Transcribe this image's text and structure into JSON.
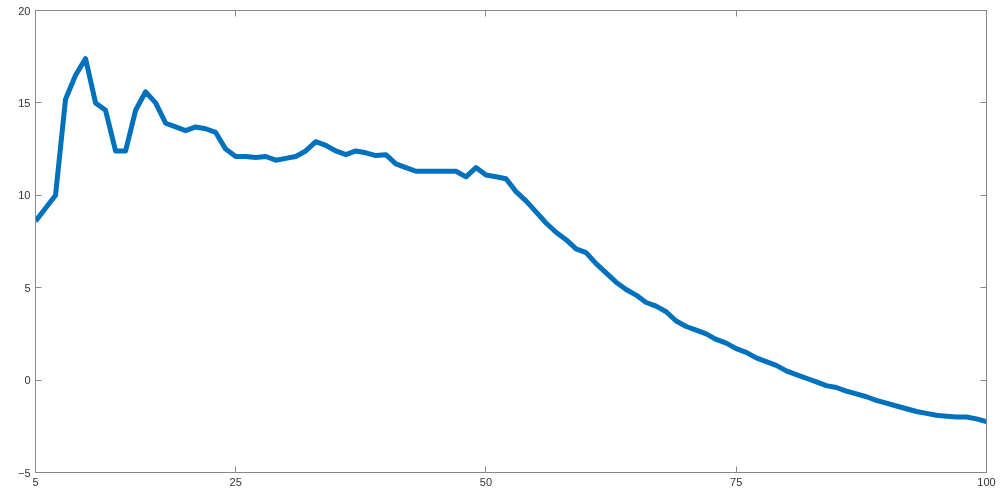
{
  "chart_data": {
    "type": "line",
    "x": [
      5,
      6,
      7,
      8,
      9,
      10,
      11,
      12,
      13,
      14,
      15,
      16,
      17,
      18,
      19,
      20,
      21,
      22,
      23,
      24,
      25,
      26,
      27,
      28,
      29,
      30,
      31,
      32,
      33,
      34,
      35,
      36,
      37,
      38,
      39,
      40,
      41,
      42,
      43,
      44,
      45,
      46,
      47,
      48,
      49,
      50,
      51,
      52,
      53,
      54,
      55,
      56,
      57,
      58,
      59,
      60,
      61,
      62,
      63,
      64,
      65,
      66,
      67,
      68,
      69,
      70,
      71,
      72,
      73,
      74,
      75,
      76,
      77,
      78,
      79,
      80,
      81,
      82,
      83,
      84,
      85,
      86,
      87,
      88,
      89,
      90,
      91,
      92,
      93,
      94,
      95,
      96,
      97,
      98,
      99,
      100
    ],
    "series": [
      {
        "color": "#0072bd",
        "values": [
          8.6,
          9.3,
          10,
          15.2,
          16.5,
          17.4,
          15,
          14.6,
          12.4,
          12.4,
          14.6,
          15.6,
          15,
          13.9,
          13.7,
          13.5,
          13.7,
          13.6,
          13.4,
          12.5,
          12.1,
          12.1,
          12.05,
          12.1,
          11.9,
          12,
          12.1,
          12.4,
          12.9,
          12.7,
          12.4,
          12.2,
          12.4,
          12.3,
          12.15,
          12.2,
          11.7,
          11.5,
          11.3,
          11.3,
          11.3,
          11.3,
          11.3,
          11.0,
          11.5,
          11.1,
          11.0,
          10.9,
          10.2,
          9.7,
          9.1,
          8.5,
          8.0,
          7.6,
          7.1,
          6.9,
          6.3,
          5.8,
          5.3,
          4.9,
          4.6,
          4.2,
          4.0,
          3.7,
          3.2,
          2.9,
          2.7,
          2.5,
          2.2,
          2.0,
          1.7,
          1.5,
          1.2,
          1.0,
          0.8,
          0.5,
          0.3,
          0.1,
          -0.1,
          -0.3,
          -0.4,
          -0.6,
          -0.75,
          -0.9,
          -1.1,
          -1.25,
          -1.4,
          -1.55,
          -1.7,
          -1.8,
          -1.9,
          -1.95,
          -2.0,
          -2.0,
          -2.1,
          -2.25
        ]
      }
    ],
    "xlim": [
      5,
      100
    ],
    "ylim": [
      -5,
      20
    ],
    "xticks": [
      5,
      25,
      50,
      75,
      100
    ],
    "yticks": [
      -5,
      0,
      5,
      10,
      15,
      20
    ],
    "grid": false,
    "marker": "none",
    "line_style": "solid"
  }
}
